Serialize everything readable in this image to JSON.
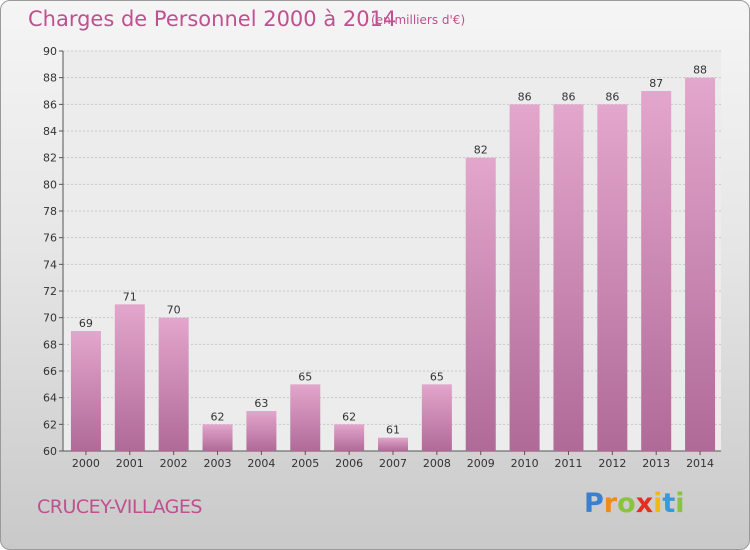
{
  "chart_data": {
    "type": "bar",
    "title": "Charges de Personnel 2000 à 2014",
    "subtitle": "(en milliers d'€)",
    "categories": [
      "2000",
      "2001",
      "2002",
      "2003",
      "2004",
      "2005",
      "2006",
      "2007",
      "2008",
      "2009",
      "2010",
      "2011",
      "2012",
      "2013",
      "2014"
    ],
    "values": [
      69,
      71,
      70,
      62,
      63,
      65,
      62,
      61,
      65,
      82,
      86,
      86,
      86,
      87,
      88
    ],
    "ylim": [
      60,
      90
    ],
    "yticks": [
      60,
      62,
      64,
      66,
      68,
      70,
      72,
      74,
      76,
      78,
      80,
      82,
      84,
      86,
      88,
      90
    ],
    "grid": true,
    "bar_color": "#d98ebb"
  },
  "commune": "CRUCEY-VILLAGES",
  "logo": {
    "letters": [
      "P",
      "r",
      "o",
      "x",
      "i",
      "t",
      "i"
    ],
    "colors": [
      "#3a7fd0",
      "#f08a1c",
      "#8ac43f",
      "#e2301f",
      "#f0b81c",
      "#3a9ad9",
      "#8ac43f"
    ]
  }
}
